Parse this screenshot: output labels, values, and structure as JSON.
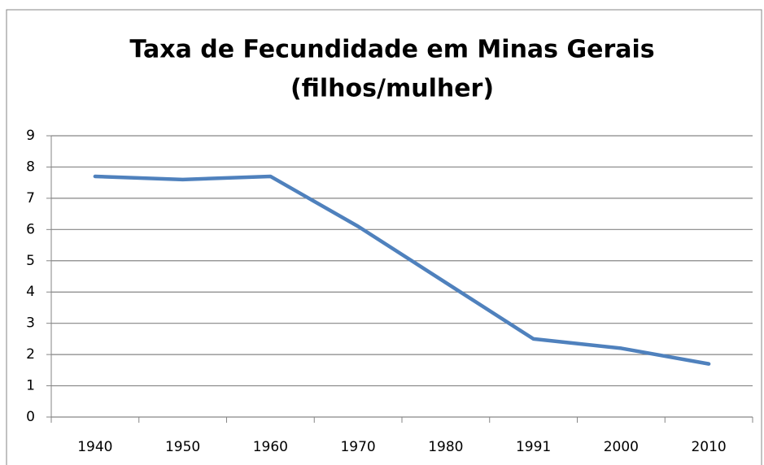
{
  "chart_data": {
    "type": "line",
    "title": [
      "Taxa de Fecundidade em Minas Gerais",
      "(filhos/mulher)"
    ],
    "categories": [
      "1940",
      "1950",
      "1960",
      "1970",
      "1980",
      "1991",
      "2000",
      "2010"
    ],
    "values": [
      7.7,
      7.6,
      7.7,
      6.1,
      4.3,
      2.5,
      2.2,
      1.7
    ],
    "color": "#4f81bd",
    "ylim": [
      0,
      9
    ],
    "yticks": [
      0,
      1,
      2,
      3,
      4,
      5,
      6,
      7,
      8,
      9
    ],
    "grid": true
  }
}
